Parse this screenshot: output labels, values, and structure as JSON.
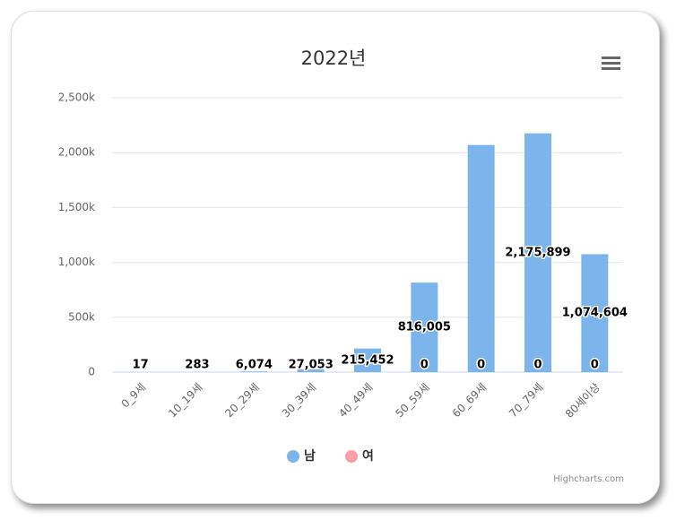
{
  "chart_data": {
    "type": "bar",
    "stacking": "normal",
    "title": "2022년",
    "categories": [
      "0_9세",
      "10_19세",
      "20_29세",
      "30_39세",
      "40_49세",
      "50_59세",
      "60_69세",
      "70_79세",
      "80세이상"
    ],
    "series": [
      {
        "name": "남",
        "color": "#7cb5ec",
        "values": [
          17,
          283,
          6074,
          27053,
          215452,
          816005,
          2070000,
          2175899,
          1074604
        ],
        "value_labels": [
          "17",
          "283",
          "6,074",
          "27,053",
          "215,452",
          "816,005",
          null,
          "2,175,899",
          "1,074,604"
        ]
      },
      {
        "name": "여",
        "color": "#f7a1a6",
        "values": [
          0,
          0,
          0,
          0,
          0,
          0,
          0,
          0,
          0
        ],
        "value_labels": [
          null,
          null,
          null,
          null,
          null,
          "0",
          "0",
          "0",
          "0"
        ]
      }
    ],
    "ylim": [
      0,
      2500000
    ],
    "yticks": [
      0,
      {
        "value": 500000,
        "label": "500k"
      },
      {
        "value": 1000000,
        "label": "1,000k"
      },
      {
        "value": 1500000,
        "label": "1,500k"
      },
      {
        "value": 2000000,
        "label": "2,000k"
      },
      {
        "value": 2500000,
        "label": "2,500k"
      }
    ],
    "grid": true,
    "legend": "bottom",
    "credits": "Highcharts.com"
  }
}
